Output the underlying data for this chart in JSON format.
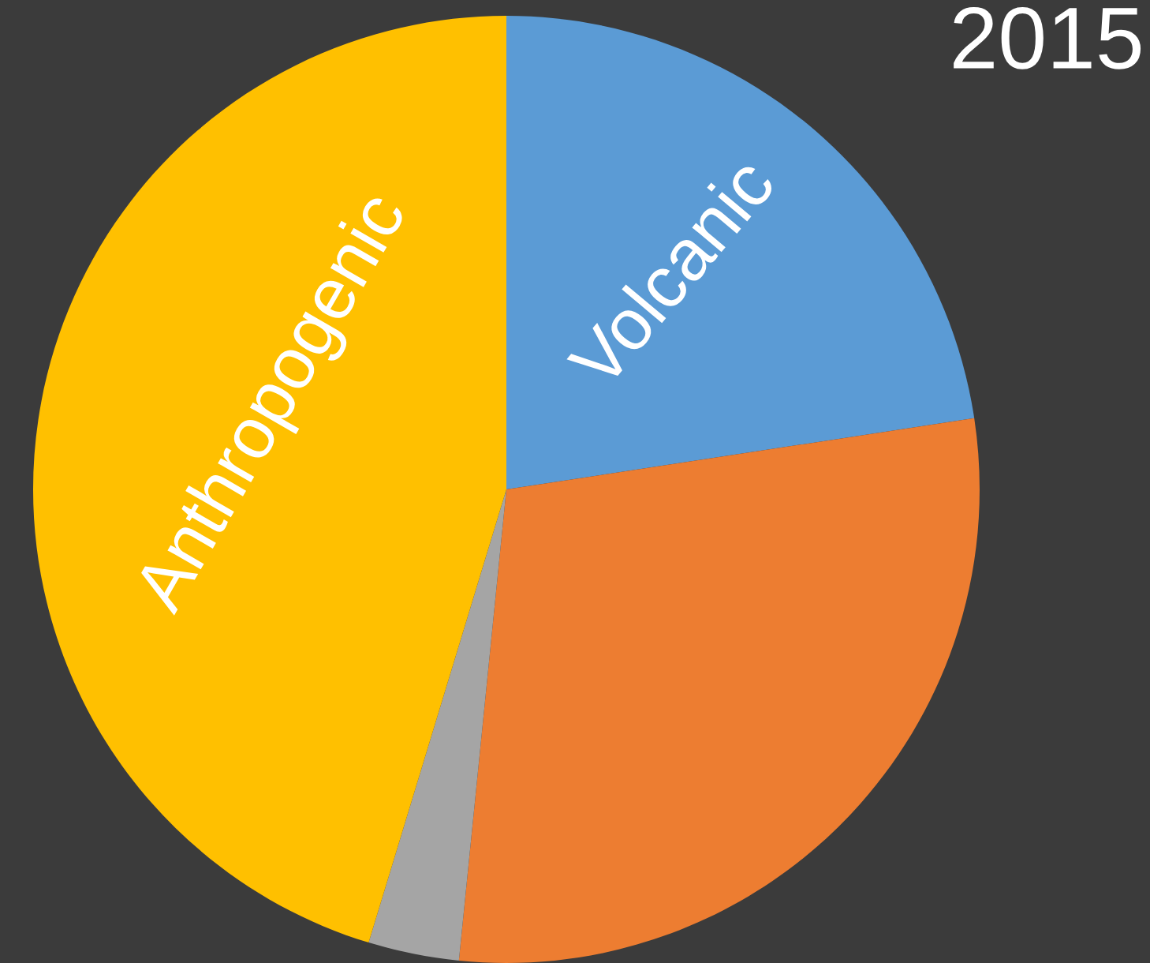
{
  "chart_data": {
    "type": "pie",
    "title": "2015",
    "categories": [
      "Volcanic",
      null,
      null,
      "Anthropogenic"
    ],
    "values": [
      22.6,
      29.0,
      3.1,
      45.3
    ],
    "colors": [
      "#5b9bd5",
      "#ed7d31",
      "#a5a5a5",
      "#ffc000"
    ]
  }
}
